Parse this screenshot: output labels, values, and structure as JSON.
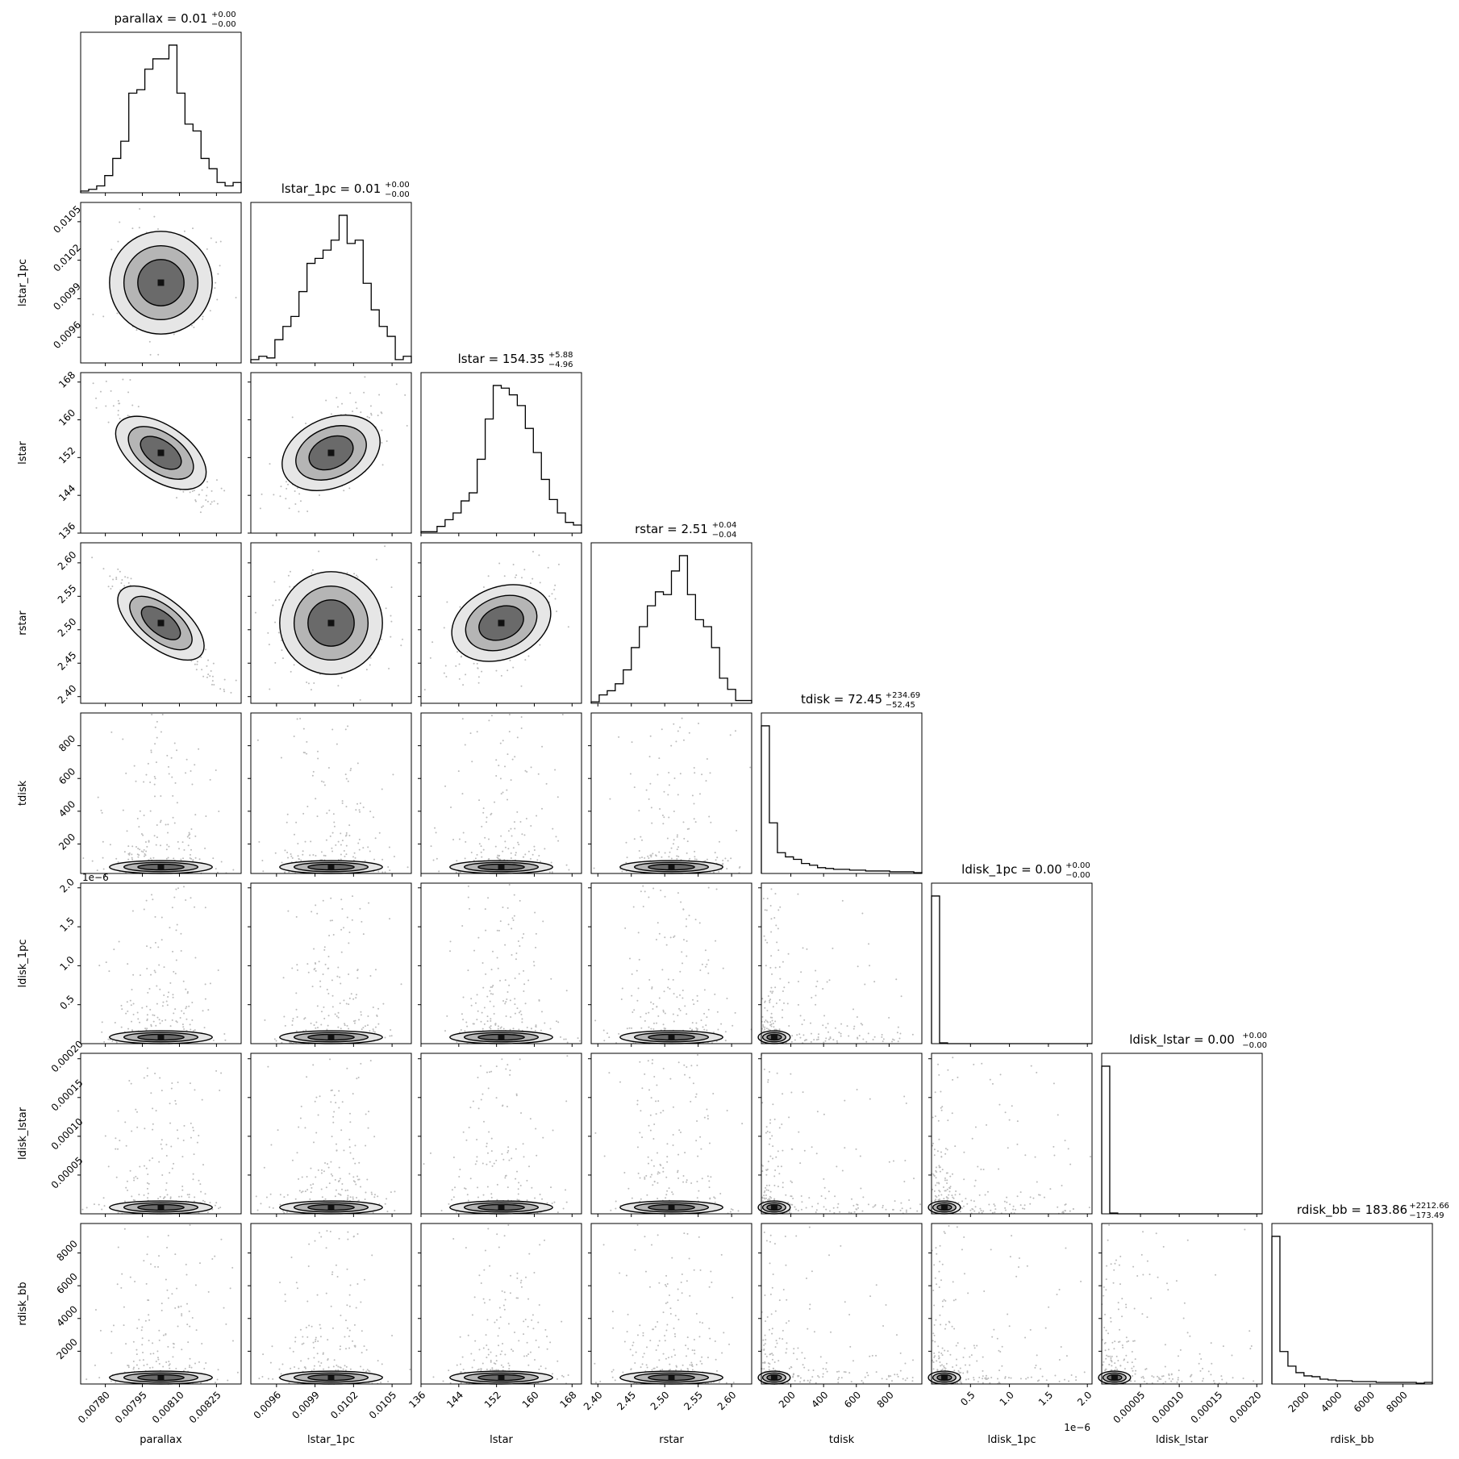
{
  "chart_data": {
    "type": "corner",
    "parameters": [
      {
        "name": "parallax",
        "title_value": "0.01",
        "title_plus": "+0.00",
        "title_minus": "−0.00",
        "range": [
          0.0077,
          0.00835
        ],
        "ticks": [
          {
            "v": 0.0078,
            "label": "0.00780"
          },
          {
            "v": 0.00795,
            "label": "0.00795"
          },
          {
            "v": 0.0081,
            "label": "0.00810"
          },
          {
            "v": 0.00825,
            "label": "0.00825"
          }
        ],
        "hist": [
          1,
          2,
          4,
          10,
          20,
          30,
          58,
          60,
          72,
          78,
          78,
          86,
          58,
          40,
          36,
          20,
          14,
          6,
          4,
          6
        ]
      },
      {
        "name": "lstar_1pc",
        "title_value": "0.01",
        "title_plus": "+0.00",
        "title_minus": "−0.00",
        "range": [
          0.0094,
          0.01065
        ],
        "ticks": [
          {
            "v": 0.0096,
            "label": "0.0096"
          },
          {
            "v": 0.0099,
            "label": "0.0099"
          },
          {
            "v": 0.0102,
            "label": "0.0102"
          },
          {
            "v": 0.0105,
            "label": "0.0105"
          }
        ],
        "hist": [
          2,
          4,
          3,
          14,
          22,
          28,
          43,
          60,
          63,
          68,
          74,
          89,
          72,
          74,
          48,
          32,
          22,
          16,
          2,
          4
        ]
      },
      {
        "name": "lstar",
        "title_value": "154.35",
        "title_plus": "+5.88",
        "title_minus": "−4.96",
        "range": [
          136,
          170
        ],
        "ticks": [
          {
            "v": 136,
            "label": "136"
          },
          {
            "v": 144,
            "label": "144"
          },
          {
            "v": 152,
            "label": "152"
          },
          {
            "v": 160,
            "label": "160"
          },
          {
            "v": 168,
            "label": "168"
          }
        ],
        "hist": [
          1,
          1,
          5,
          10,
          15,
          24,
          30,
          55,
          85,
          110,
          108,
          103,
          95,
          78,
          60,
          40,
          25,
          15,
          8,
          6
        ]
      },
      {
        "name": "rstar",
        "title_value": "2.51",
        "title_plus": "+0.04",
        "title_minus": "−0.04",
        "range": [
          2.39,
          2.63
        ],
        "ticks": [
          {
            "v": 2.4,
            "label": "2.40"
          },
          {
            "v": 2.45,
            "label": "2.45"
          },
          {
            "v": 2.5,
            "label": "2.50"
          },
          {
            "v": 2.55,
            "label": "2.55"
          },
          {
            "v": 2.6,
            "label": "2.60"
          }
        ],
        "hist": [
          1,
          6,
          9,
          14,
          24,
          40,
          55,
          70,
          80,
          78,
          95,
          106,
          78,
          60,
          55,
          40,
          18,
          10,
          2,
          2
        ]
      },
      {
        "name": "tdisk",
        "title_value": "72.45",
        "title_plus": "+234.69",
        "title_minus": "−52.45",
        "range": [
          20,
          1000
        ],
        "ticks": [
          {
            "v": 200,
            "label": "200"
          },
          {
            "v": 400,
            "label": "400"
          },
          {
            "v": 600,
            "label": "600"
          },
          {
            "v": 800,
            "label": "800"
          }
        ],
        "hist": [
          178,
          61,
          25,
          20,
          17,
          12,
          10,
          7,
          6,
          5,
          5,
          4,
          4,
          3,
          3,
          3,
          2,
          2,
          2,
          1
        ]
      },
      {
        "name": "ldisk_1pc",
        "title_value": "0.00",
        "title_plus": "+0.00",
        "title_minus": "−0.00",
        "range": [
          0,
          2.06e-06
        ],
        "ticks": [
          {
            "v": 5e-07,
            "label": "0.5"
          },
          {
            "v": 1e-06,
            "label": "1.0"
          },
          {
            "v": 1.5e-06,
            "label": "1.5"
          },
          {
            "v": 2e-06,
            "label": "2.0"
          }
        ],
        "offset_label": "1e−6",
        "hist": [
          190,
          1,
          0,
          0,
          0,
          0,
          0,
          0,
          0,
          0,
          0,
          0,
          0,
          0,
          0,
          0,
          0,
          0,
          0,
          0
        ]
      },
      {
        "name": "ldisk_lstar",
        "title_value": "0.00",
        "title_plus": "+0.00",
        "title_minus": "−0.00",
        "range": [
          0,
          0.000207
        ],
        "ticks": [
          {
            "v": 5e-05,
            "label": "0.00005"
          },
          {
            "v": 0.0001,
            "label": "0.00010"
          },
          {
            "v": 0.00015,
            "label": "0.00015"
          },
          {
            "v": 0.0002,
            "label": "0.00020"
          }
        ],
        "hist": [
          190,
          1,
          0,
          0,
          0,
          0,
          0,
          0,
          0,
          0,
          0,
          0,
          0,
          0,
          0,
          0,
          0,
          0,
          0,
          0
        ]
      },
      {
        "name": "rdisk_bb",
        "title_value": "183.86",
        "title_plus": "+2212.66",
        "title_minus": "−173.49",
        "range": [
          0,
          9800
        ],
        "ticks": [
          {
            "v": 2000,
            "label": "2000"
          },
          {
            "v": 4000,
            "label": "4000"
          },
          {
            "v": 6000,
            "label": "6000"
          },
          {
            "v": 8000,
            "label": "8000"
          }
        ],
        "hist": [
          182,
          40,
          22,
          14,
          10,
          9,
          6,
          5,
          4,
          4,
          3,
          3,
          3,
          2,
          2,
          2,
          2,
          2,
          1,
          2
        ]
      }
    ]
  }
}
